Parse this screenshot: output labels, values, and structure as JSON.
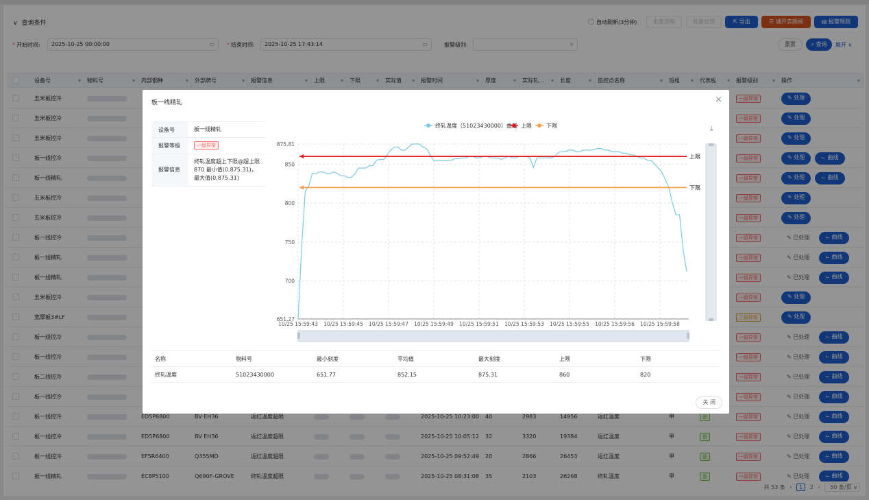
{
  "toolbar": {
    "query_title": "查询条件",
    "auto_refresh": "自动刷新(3分钟)",
    "batch_ignore": "批量忽略",
    "batch_process": "批量处理",
    "export": "导出",
    "upgrade": "城开去颜阅",
    "alarm_rules": "报警规则"
  },
  "filters": {
    "start_label": "开始时间:",
    "start_value": "2025-10-25 00:00:00",
    "end_label": "结束时间:",
    "end_value": "2025-10-25 17:43:14",
    "level_label": "报警级别:",
    "reset": "重置",
    "query": "查询",
    "expand": "展开"
  },
  "table": {
    "columns": [
      "设备号",
      "物料号",
      "内部钢种",
      "外部牌号",
      "报警信息",
      "上限",
      "下限",
      "实际值",
      "报警时间",
      "厚度",
      "实际轧...",
      "长度",
      "监控点名称",
      "班组",
      "代表板",
      "报警级别",
      "操作"
    ],
    "rows": [
      {
        "device": "五米板控冷",
        "level": "一级异常",
        "act": [
          "处理"
        ]
      },
      {
        "device": "五米板控冷",
        "level": "一级异常",
        "act": [
          "处理"
        ]
      },
      {
        "device": "五米板控冷",
        "level": "一级异常",
        "act": [
          "处理"
        ]
      },
      {
        "device": "板一线控冷",
        "level": "一级异常",
        "act": [
          "处理",
          "曲线"
        ]
      },
      {
        "device": "板一线精轧",
        "level": "一级异常",
        "act": [
          "处理",
          "曲线"
        ]
      },
      {
        "device": "五米板控冷",
        "level": "一级异常",
        "act": [
          "处理"
        ]
      },
      {
        "device": "五米板控冷",
        "level": "一级异常",
        "act": [
          "处理"
        ]
      },
      {
        "device": "板一线控冷",
        "level": "一级异常",
        "act": [
          "已处理",
          "曲线"
        ]
      },
      {
        "device": "板一线精轧",
        "level": "一级异常",
        "act": [
          "已处理",
          "曲线"
        ]
      },
      {
        "device": "板一线精轧",
        "level": "一级异常",
        "act": [
          "已处理",
          "曲线"
        ]
      },
      {
        "device": "五米板控冷",
        "level": "一级异常",
        "act": [
          "处理"
        ]
      },
      {
        "device": "宽厚板3#LF",
        "level": "三级异常",
        "act": [
          "处理"
        ]
      },
      {
        "device": "板一线控冷",
        "level": "一级异常",
        "act": [
          "已处理",
          "曲线"
        ]
      },
      {
        "device": "板一线控冷",
        "level": "一级异常",
        "act": [
          "已处理",
          "曲线"
        ]
      },
      {
        "device": "板二线控冷",
        "level": "一级异常",
        "act": [
          "已处理",
          "曲线"
        ]
      },
      {
        "device": "板一线控冷",
        "level": "一级异常",
        "act": [
          "已处理",
          "曲线"
        ]
      },
      {
        "device": "板一线控冷",
        "inner": "ED5P6800",
        "outer": "BV EH36",
        "info": "返红温度超限",
        "time": "2025-10-25 10:23:00",
        "thick": "40",
        "roll": "2983",
        "len": "14956",
        "point": "返红温度",
        "team": "甲",
        "rep": "是",
        "level": "一级异常",
        "act": [
          "已处理",
          "曲线"
        ]
      },
      {
        "device": "板一线控冷",
        "inner": "ED5P6800",
        "outer": "BV EH36",
        "info": "返红温度超限",
        "time": "2025-10-25 10:05:12",
        "thick": "32",
        "roll": "3320",
        "len": "19384",
        "point": "返红温度",
        "team": "甲",
        "rep": "是",
        "level": "一级异常",
        "act": [
          "已处理",
          "曲线"
        ]
      },
      {
        "device": "板一线控冷",
        "inner": "EF5R6400",
        "outer": "Q355MD",
        "info": "返红温度超限",
        "time": "2025-10-25 09:52:49",
        "thick": "20",
        "roll": "2866",
        "len": "26453",
        "point": "返红温度",
        "team": "甲",
        "rep": "是",
        "level": "一级异常",
        "act": [
          "已处理",
          "曲线"
        ]
      },
      {
        "device": "板一线精轧",
        "inner": "EC8P5100",
        "outer": "Q690F-GROVE",
        "info": "终轧温度超限",
        "time": "2025-10-25 08:31:08",
        "thick": "35",
        "roll": "2103",
        "len": "26268",
        "point": "终轧温度",
        "team": "甲",
        "rep": "是",
        "level": "一级异常",
        "act": [
          "已处理",
          "曲线"
        ]
      }
    ]
  },
  "pagination": {
    "total": "共 53 条",
    "page1": "1",
    "page2": "2",
    "size": "50 条/页"
  },
  "modal": {
    "title": "板一线精轧",
    "device_label": "设备号",
    "device_value": "板一线精轧",
    "level_label": "报警等级",
    "level_value": "一级异常",
    "info_label": "报警信息",
    "info_value": "终轧温度超上下限@超上限870 最小值(0,875.31)，最大值(0,875.31)",
    "close": "关 闭",
    "stats": {
      "headers": [
        "名称",
        "物料号",
        "最小刻度",
        "平均值",
        "最大刻度",
        "上限",
        "下限"
      ],
      "values": [
        "终轧温度",
        "51023430000",
        "651.77",
        "852.15",
        "875.31",
        "860",
        "820"
      ]
    }
  },
  "chart_data": {
    "type": "line",
    "legend": [
      "终轧温度（51023430000）曲线",
      "上限",
      "下限"
    ],
    "colors": {
      "series": "#7fc8e0",
      "upper": "#e5171b",
      "lower": "#f5a04a"
    },
    "ylim": [
      651.27,
      875.81
    ],
    "yticks": [
      "875.81",
      "850",
      "800",
      "750",
      "700",
      "651.27"
    ],
    "xticks": [
      "10/25 15:59:43",
      "10/25 15:59:45",
      "10/25 15:59:47",
      "10/25 15:59:49",
      "10/25 15:59:51",
      "10/25 15:59:53",
      "10/25 15:59:55",
      "10/25 15:59:56",
      "10/25 15:59:58"
    ],
    "upper_label": "上限",
    "lower_label": "下限",
    "upper": 860,
    "lower": 820,
    "series": [
      {
        "name": "终轧温度（51023430000）曲线",
        "values": [
          651,
          745,
          815,
          822,
          838,
          838,
          840,
          840,
          838,
          838,
          840,
          838,
          835,
          835,
          833,
          833,
          838,
          845,
          845,
          845,
          848,
          848,
          855,
          856,
          856,
          862,
          868,
          872,
          872,
          868,
          868,
          872,
          876,
          876,
          876,
          872,
          870,
          862,
          855,
          855,
          855,
          855,
          855,
          855,
          857,
          857,
          858,
          858,
          860,
          860,
          858,
          858,
          860,
          860,
          858,
          858,
          858,
          856,
          858,
          860,
          858,
          858,
          860,
          860,
          860,
          858,
          846,
          858,
          858,
          858,
          858,
          858,
          860,
          865,
          866,
          866,
          868,
          868,
          866,
          866,
          868,
          868,
          868,
          869,
          870,
          870,
          868,
          868,
          866,
          866,
          866,
          864,
          864,
          862,
          862,
          860,
          858,
          858,
          855,
          855,
          850,
          845,
          840,
          830,
          820,
          800,
          785,
          785,
          740,
          712
        ]
      }
    ]
  }
}
